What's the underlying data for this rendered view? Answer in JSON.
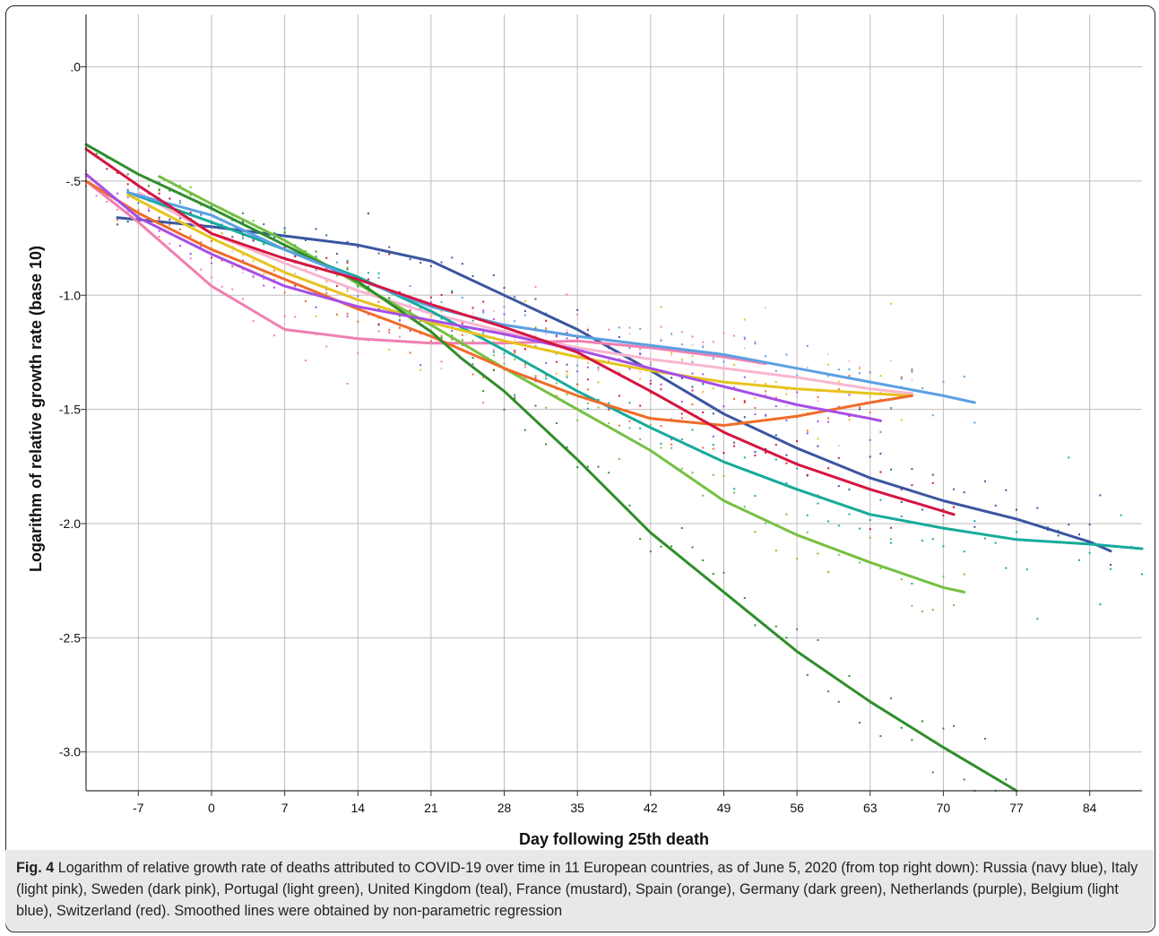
{
  "chart_data": {
    "type": "line",
    "xlabel": "Day following 25th death",
    "ylabel": "Logarithm of relative growth rate (base 10)",
    "x_ticks": [
      -7,
      0,
      7,
      14,
      21,
      28,
      35,
      42,
      49,
      56,
      63,
      70,
      77,
      84
    ],
    "y_ticks": [
      ".0",
      "-.5",
      "-1.0",
      "-1.5",
      "-2.0",
      "-2.5",
      "-3.0"
    ],
    "y_tick_values": [
      0,
      -0.5,
      -1.0,
      -1.5,
      -2.0,
      -2.5,
      -3.0
    ],
    "xlim": [
      -12,
      89
    ],
    "ylim": [
      -3.17,
      0.23
    ],
    "grid": true,
    "series": [
      {
        "color": "#3b55a0",
        "x": [
          -9,
          0,
          7,
          14,
          21,
          28,
          35,
          42,
          49,
          56,
          63,
          70,
          77,
          84,
          86
        ],
        "y": [
          -0.66,
          -0.7,
          -0.74,
          -0.78,
          -0.85,
          -1.0,
          -1.15,
          -1.33,
          -1.52,
          -1.67,
          -1.8,
          -1.9,
          -1.98,
          -2.08,
          -2.12
        ]
      },
      {
        "color": "#f9b6cf",
        "x": [
          -7,
          0,
          7,
          14,
          21,
          28,
          35,
          42,
          49,
          56,
          63,
          67
        ],
        "y": [
          -0.55,
          -0.73,
          -0.86,
          -0.98,
          -1.08,
          -1.16,
          -1.23,
          -1.28,
          -1.32,
          -1.36,
          -1.41,
          -1.43
        ]
      },
      {
        "color": "#f07fb2",
        "x": [
          -12,
          -7,
          0,
          7,
          14,
          21,
          28,
          35,
          42,
          49,
          53
        ],
        "y": [
          -0.5,
          -0.68,
          -0.96,
          -1.15,
          -1.19,
          -1.21,
          -1.21,
          -1.2,
          -1.23,
          -1.27,
          -1.3
        ]
      },
      {
        "color": "#76c043",
        "x": [
          -5,
          0,
          7,
          14,
          21,
          28,
          35,
          42,
          49,
          56,
          63,
          70,
          72
        ],
        "y": [
          -0.48,
          -0.6,
          -0.76,
          -0.95,
          -1.13,
          -1.32,
          -1.5,
          -1.68,
          -1.9,
          -2.05,
          -2.17,
          -2.28,
          -2.3
        ]
      },
      {
        "color": "#17aa9b",
        "x": [
          -8,
          0,
          7,
          14,
          21,
          28,
          35,
          42,
          49,
          56,
          63,
          70,
          77,
          84,
          89
        ],
        "y": [
          -0.55,
          -0.68,
          -0.8,
          -0.92,
          -1.07,
          -1.24,
          -1.42,
          -1.58,
          -1.73,
          -1.85,
          -1.96,
          -2.02,
          -2.07,
          -2.09,
          -2.11
        ]
      },
      {
        "color": "#e6c31e",
        "x": [
          -8,
          0,
          7,
          14,
          21,
          28,
          35,
          42,
          49,
          56,
          63,
          67
        ],
        "y": [
          -0.56,
          -0.75,
          -0.9,
          -1.02,
          -1.12,
          -1.2,
          -1.27,
          -1.33,
          -1.38,
          -1.41,
          -1.43,
          -1.44
        ]
      },
      {
        "color": "#ef6c2a",
        "x": [
          -12,
          -7,
          0,
          7,
          14,
          21,
          28,
          35,
          42,
          49,
          56,
          63,
          67
        ],
        "y": [
          -0.5,
          -0.64,
          -0.8,
          -0.93,
          -1.06,
          -1.18,
          -1.32,
          -1.44,
          -1.54,
          -1.57,
          -1.53,
          -1.47,
          -1.44
        ]
      },
      {
        "color": "#2f8e2b",
        "x": [
          -12,
          -7,
          0,
          7,
          14,
          21,
          24,
          28,
          35,
          42,
          49,
          56,
          63,
          70,
          77
        ],
        "y": [
          -0.34,
          -0.47,
          -0.62,
          -0.78,
          -0.94,
          -1.16,
          -1.28,
          -1.42,
          -1.72,
          -2.04,
          -2.3,
          -2.56,
          -2.78,
          -2.98,
          -3.17
        ]
      },
      {
        "color": "#a64ee6",
        "x": [
          -12,
          -7,
          0,
          7,
          14,
          21,
          28,
          35,
          42,
          49,
          56,
          63,
          64
        ],
        "y": [
          -0.47,
          -0.66,
          -0.82,
          -0.96,
          -1.05,
          -1.11,
          -1.17,
          -1.24,
          -1.32,
          -1.4,
          -1.48,
          -1.54,
          -1.55
        ]
      },
      {
        "color": "#5ba0e3",
        "x": [
          -8,
          0,
          7,
          14,
          21,
          28,
          35,
          42,
          49,
          56,
          63,
          70,
          73
        ],
        "y": [
          -0.55,
          -0.65,
          -0.8,
          -0.93,
          -1.05,
          -1.13,
          -1.18,
          -1.22,
          -1.26,
          -1.32,
          -1.38,
          -1.44,
          -1.47
        ]
      },
      {
        "color": "#d51540",
        "x": [
          -12,
          -7,
          0,
          7,
          14,
          21,
          28,
          35,
          42,
          49,
          56,
          63,
          71
        ],
        "y": [
          -0.36,
          -0.52,
          -0.73,
          -0.84,
          -0.93,
          -1.04,
          -1.14,
          -1.25,
          -1.42,
          -1.6,
          -1.74,
          -1.85,
          -1.96
        ]
      }
    ]
  },
  "caption": {
    "label": "Fig. 4",
    "text": " Logarithm of relative growth rate of deaths attributed to COVID-19 over time in 11 European countries, as of June 5, 2020 (from top right down): Russia (navy blue), Italy (light pink), Sweden (dark pink), Portugal (light green), United Kingdom (teal), France (mustard), Spain (orange), Germany (dark green), Netherlands (purple), Belgium (light blue), Switzerland (red). Smoothed lines were obtained by non-parametric regression"
  }
}
